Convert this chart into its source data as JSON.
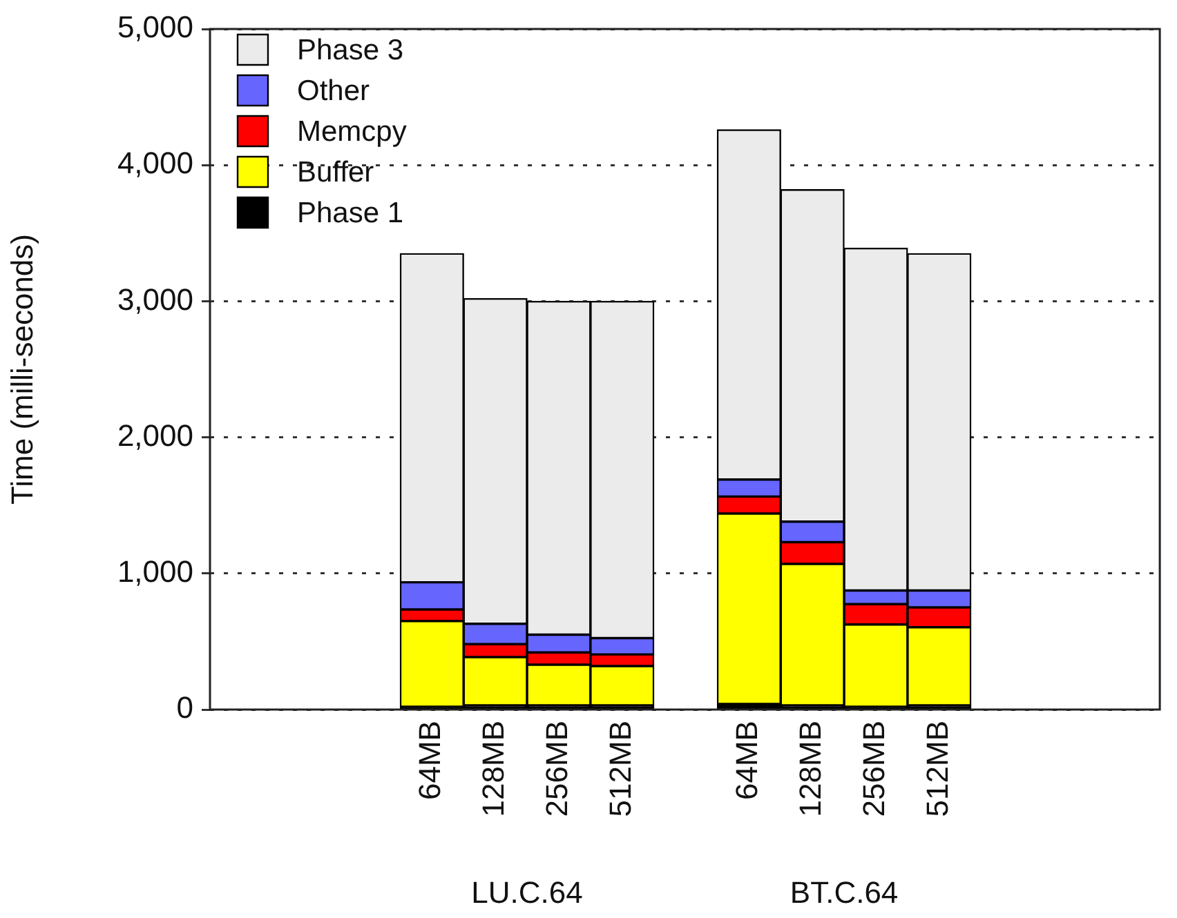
{
  "chart_data": {
    "type": "bar",
    "stacked": true,
    "ylabel": "Time (milli-seconds)",
    "categories": [
      null,
      null,
      null,
      "64MB",
      "128MB",
      "256MB",
      "512MB",
      null,
      "64MB",
      "128MB",
      "256MB",
      "512MB",
      null,
      null,
      null
    ],
    "series": [
      {
        "name": "Phase 1",
        "color": "#000000",
        "values": [
          null,
          null,
          null,
          20,
          30,
          30,
          30,
          null,
          40,
          30,
          20,
          30,
          null,
          null,
          null
        ]
      },
      {
        "name": "Buffer",
        "color": "#ffff00",
        "values": [
          null,
          null,
          null,
          630,
          355,
          300,
          290,
          null,
          1400,
          1040,
          605,
          575,
          null,
          null,
          null
        ]
      },
      {
        "name": "Memcpy",
        "color": "#ff0000",
        "values": [
          null,
          null,
          null,
          85,
          95,
          90,
          85,
          null,
          125,
          160,
          150,
          145,
          null,
          null,
          null
        ]
      },
      {
        "name": "Other",
        "color": "#6666ff",
        "values": [
          null,
          null,
          null,
          200,
          150,
          130,
          120,
          null,
          125,
          150,
          100,
          125,
          null,
          null,
          null
        ]
      },
      {
        "name": "Phase 3",
        "color": "#ebebeb",
        "values": [
          null,
          null,
          null,
          2415,
          2390,
          2450,
          2475,
          null,
          2570,
          2440,
          2515,
          2475,
          null,
          null,
          null
        ]
      }
    ],
    "ylim": [
      0,
      5000
    ],
    "yticks": [
      0,
      {
        "value": 1000,
        "label": "1,000"
      },
      {
        "value": 2000,
        "label": "2,000"
      },
      {
        "value": 3000,
        "label": "3,000"
      },
      {
        "value": 4000,
        "label": "4,000"
      },
      {
        "value": 5000,
        "label": "5,000"
      }
    ],
    "grid": "y",
    "legend": "top left",
    "annotations": [
      "LU.C.64",
      "BT.C.64"
    ]
  }
}
